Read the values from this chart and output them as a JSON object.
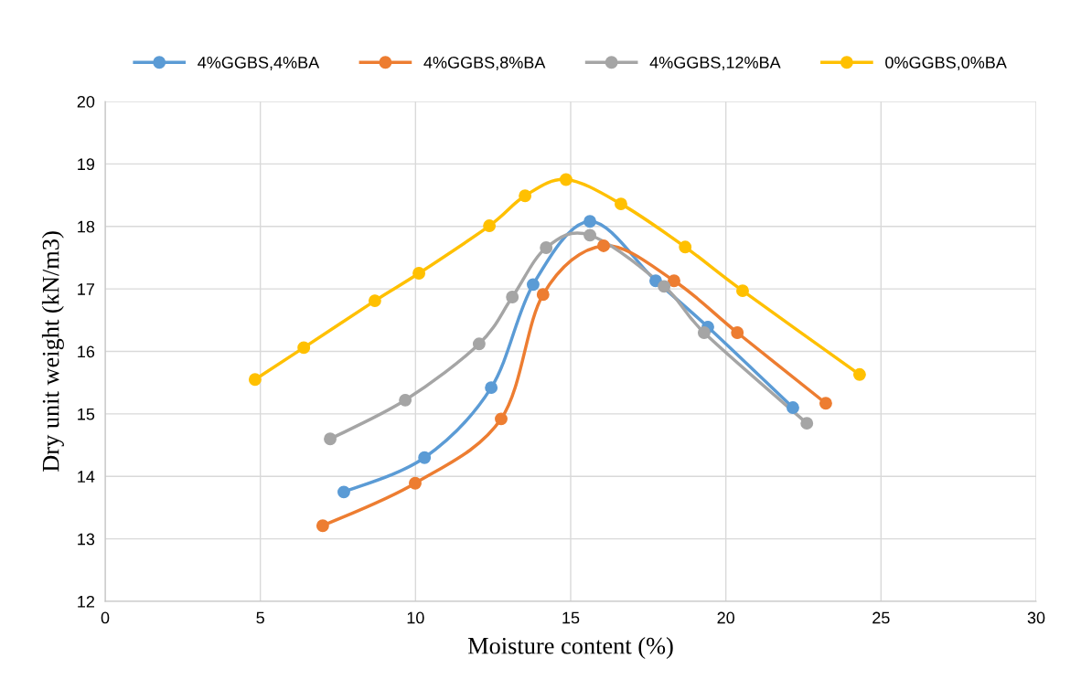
{
  "chart_data": {
    "type": "line",
    "xlabel": "Moisture content (%)",
    "ylabel": "Dry unit weight (kN/m3)",
    "xlim": [
      0,
      30
    ],
    "xticks": [
      0,
      5,
      10,
      15,
      20,
      25,
      30
    ],
    "ylim": [
      12,
      20
    ],
    "yticks": [
      12,
      13,
      14,
      15,
      16,
      17,
      18,
      19,
      20
    ],
    "grid": true,
    "legend": "top",
    "marker": "circle",
    "line_style": "solid",
    "series": [
      {
        "name": "4%GGBS,4%BA",
        "color": "#5b9bd5",
        "x": [
          7.69,
          10.29,
          12.44,
          13.79,
          15.62,
          17.74,
          19.42,
          22.16
        ],
        "values": [
          13.75,
          14.3,
          15.42,
          17.07,
          18.08,
          17.13,
          16.39,
          15.1
        ]
      },
      {
        "name": "4%GGBS,8%BA",
        "color": "#ed7d31",
        "x": [
          7.01,
          9.99,
          12.76,
          14.11,
          16.06,
          18.33,
          20.37,
          23.22
        ],
        "values": [
          13.21,
          13.89,
          14.92,
          16.91,
          17.69,
          17.13,
          16.3,
          15.17
        ]
      },
      {
        "name": "4%GGBS,12%BA",
        "color": "#a5a5a5",
        "x": [
          7.25,
          9.67,
          12.05,
          13.12,
          14.21,
          15.62,
          18.01,
          19.3,
          22.61
        ],
        "values": [
          14.6,
          15.22,
          16.12,
          16.87,
          17.66,
          17.86,
          17.04,
          16.3,
          14.85
        ]
      },
      {
        "name": "0%GGBS,0%BA",
        "color": "#ffc000",
        "x": [
          4.83,
          6.4,
          8.69,
          10.11,
          12.38,
          13.53,
          14.85,
          16.62,
          18.69,
          20.54,
          24.31
        ],
        "values": [
          15.55,
          16.06,
          16.81,
          17.25,
          18.01,
          18.49,
          18.75,
          18.36,
          17.67,
          16.97,
          15.63
        ]
      }
    ]
  }
}
